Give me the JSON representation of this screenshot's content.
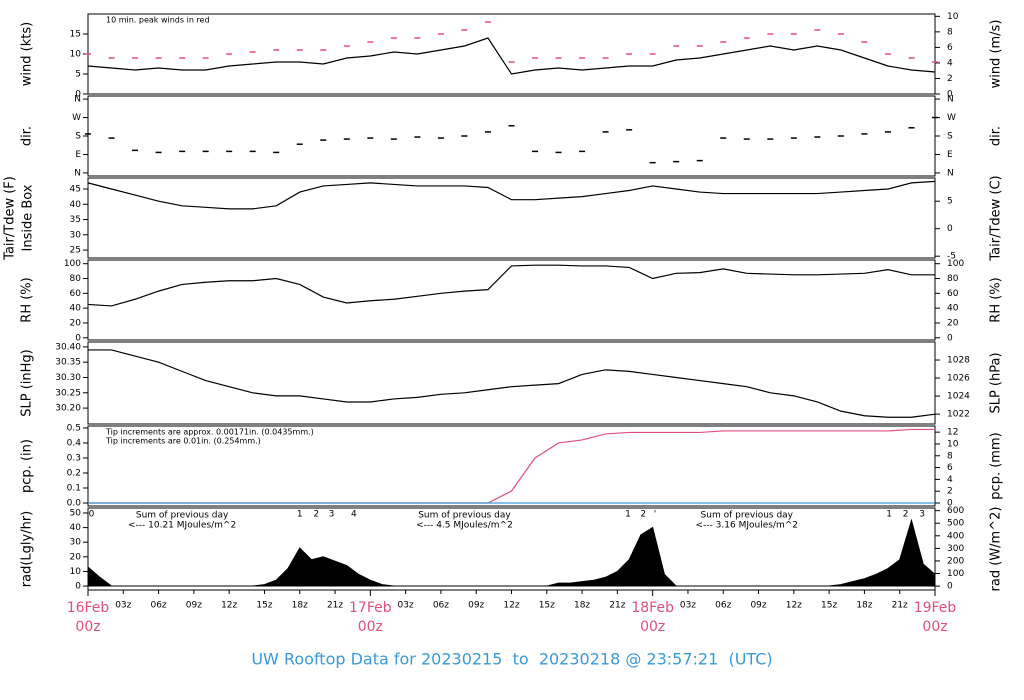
{
  "title": "UW Rooftop Data for 20230215  to  20230218 @ 23:57:21  (UTC)",
  "x_axis": {
    "xlim": [
      0,
      72
    ],
    "x": [
      0,
      2,
      4,
      6,
      8,
      10,
      12,
      14,
      16,
      18,
      20,
      22,
      24,
      26,
      28,
      30,
      32,
      34,
      36,
      38,
      40,
      42,
      44,
      46,
      48,
      50,
      52,
      54,
      56,
      58,
      60,
      62,
      64,
      66,
      68,
      70,
      72
    ],
    "ticks": [
      {
        "value": 3,
        "label": "03z"
      },
      {
        "value": 6,
        "label": "06z"
      },
      {
        "value": 9,
        "label": "09z"
      },
      {
        "value": 12,
        "label": "12z"
      },
      {
        "value": 15,
        "label": "15z"
      },
      {
        "value": 18,
        "label": "18z"
      },
      {
        "value": 21,
        "label": "21z"
      },
      {
        "value": 27,
        "label": "03z"
      },
      {
        "value": 30,
        "label": "06z"
      },
      {
        "value": 33,
        "label": "09z"
      },
      {
        "value": 36,
        "label": "12z"
      },
      {
        "value": 39,
        "label": "15z"
      },
      {
        "value": 42,
        "label": "18z"
      },
      {
        "value": 45,
        "label": "21z"
      },
      {
        "value": 51,
        "label": "03z"
      },
      {
        "value": 54,
        "label": "06z"
      },
      {
        "value": 57,
        "label": "09z"
      },
      {
        "value": 60,
        "label": "12z"
      },
      {
        "value": 63,
        "label": "15z"
      },
      {
        "value": 66,
        "label": "18z"
      },
      {
        "value": 69,
        "label": "21z"
      }
    ],
    "day_ticks": [
      {
        "value": 0,
        "label": "16Feb",
        "hour": "00z"
      },
      {
        "value": 24,
        "label": "17Feb",
        "hour": "00z"
      },
      {
        "value": 48,
        "label": "18Feb",
        "hour": "00z"
      },
      {
        "value": 72,
        "label": "19Feb",
        "hour": "00z"
      }
    ]
  },
  "chart_data": [
    {
      "type": "line",
      "ylabel": "wind (kts)",
      "y2label": "wind (m/s)",
      "ylim": [
        0,
        20
      ],
      "yticks": [
        0,
        5,
        10,
        15
      ],
      "y2lim": [
        0,
        10.3
      ],
      "y2ticks": [
        0,
        2,
        4,
        6,
        8,
        10
      ],
      "annotations": [
        {
          "text": "10 min. peak winds in red",
          "color": "#e0507a"
        }
      ],
      "series": [
        {
          "color": "#000000",
          "style": "line",
          "values": [
            7,
            6.5,
            6,
            6.5,
            6,
            6,
            7,
            7.5,
            8,
            8,
            7.5,
            9,
            9.5,
            10.5,
            10,
            11,
            12,
            14,
            5,
            6,
            6.5,
            6,
            6.5,
            7,
            7,
            8.5,
            9,
            10,
            11,
            12,
            11,
            12,
            11,
            9,
            7,
            6,
            5.5
          ]
        },
        {
          "color": "#e0507a",
          "style": "dash",
          "values": [
            10,
            9,
            9,
            9,
            9,
            9,
            10,
            10.5,
            11,
            11,
            11,
            12,
            13,
            14,
            14,
            15,
            16,
            18,
            8,
            9,
            9,
            9,
            9,
            10,
            10,
            12,
            12,
            13,
            14,
            15,
            15,
            16,
            15,
            13,
            10,
            9,
            8
          ]
        }
      ]
    },
    {
      "type": "scatter",
      "ylabel": "dir.",
      "y2label": "dir.",
      "ylim": [
        -15,
        375
      ],
      "yticks": [
        {
          "value": 0,
          "label": "N"
        },
        {
          "value": 90,
          "label": "E"
        },
        {
          "value": 180,
          "label": "S"
        },
        {
          "value": 270,
          "label": "W"
        },
        {
          "value": 360,
          "label": "N"
        }
      ],
      "y2lim": [
        -15,
        375
      ],
      "y2ticks": [
        {
          "value": 0,
          "label": "N"
        },
        {
          "value": 90,
          "label": "E"
        },
        {
          "value": 180,
          "label": "S"
        },
        {
          "value": 270,
          "label": "W"
        },
        {
          "value": 360,
          "label": "N"
        }
      ],
      "series": [
        {
          "color": "#000000",
          "style": "dash",
          "values": [
            190,
            170,
            110,
            100,
            105,
            105,
            105,
            105,
            100,
            140,
            160,
            165,
            170,
            165,
            175,
            170,
            180,
            200,
            230,
            105,
            100,
            105,
            200,
            210,
            50,
            55,
            60,
            170,
            165,
            165,
            170,
            175,
            180,
            190,
            200,
            220,
            270
          ]
        }
      ]
    },
    {
      "type": "line",
      "ylabel": "Tair/Tdew (F)",
      "ylabel_sub": "Inside Box",
      "y2label": "Tair/Tdew (C)",
      "ylim": [
        22.4,
        48.6
      ],
      "yticks": [
        25,
        30,
        35,
        40,
        45
      ],
      "y2lim": [
        -5.33,
        9.22
      ],
      "y2ticks": [
        -5,
        0,
        5
      ],
      "series": [
        {
          "color": "#000000",
          "style": "line",
          "values": [
            47,
            45,
            43,
            41,
            39.5,
            39,
            38.5,
            38.5,
            39.5,
            44,
            46,
            46.5,
            47,
            46.5,
            46,
            46,
            46,
            45.5,
            41.5,
            41.5,
            42,
            42.5,
            43.5,
            44.5,
            46,
            45,
            44,
            43.5,
            43.5,
            43.5,
            43.5,
            43.5,
            44,
            44.5,
            45,
            47,
            47.5
          ]
        }
      ]
    },
    {
      "type": "line",
      "ylabel": "RH (%)",
      "y2label": "RH (%)",
      "ylim": [
        -3,
        105
      ],
      "yticks": [
        0,
        20,
        40,
        60,
        80,
        100
      ],
      "y2lim": [
        -3,
        105
      ],
      "y2ticks": [
        0,
        20,
        40,
        60,
        80,
        100
      ],
      "series": [
        {
          "color": "#000000",
          "style": "line",
          "values": [
            45,
            43,
            52,
            63,
            72,
            75,
            77,
            77,
            80,
            72,
            55,
            47,
            50,
            52,
            56,
            60,
            63,
            65,
            97,
            98,
            98,
            97,
            97,
            95,
            80,
            87,
            88,
            93,
            87,
            86,
            85,
            85,
            86,
            87,
            92,
            85,
            85
          ]
        }
      ]
    },
    {
      "type": "line",
      "ylabel": "SLP (inHg)",
      "y2label": "SLP (hPa)",
      "ylim": [
        30.148,
        30.416
      ],
      "yticks": [
        {
          "value": 30.2,
          "label": "30.20"
        },
        {
          "value": 30.25,
          "label": "30.25"
        },
        {
          "value": 30.3,
          "label": "30.30"
        },
        {
          "value": 30.35,
          "label": "30.35"
        },
        {
          "value": 30.4,
          "label": "30.40"
        }
      ],
      "y2lim": [
        1020.9,
        1030.0
      ],
      "y2ticks": [
        1022,
        1024,
        1026,
        1028
      ],
      "series": [
        {
          "color": "#000000",
          "style": "line",
          "values": [
            30.39,
            30.39,
            30.37,
            30.35,
            30.32,
            30.29,
            30.27,
            30.25,
            30.24,
            30.24,
            30.23,
            30.22,
            30.22,
            30.23,
            30.235,
            30.245,
            30.25,
            30.26,
            30.27,
            30.275,
            30.28,
            30.31,
            30.325,
            30.32,
            30.31,
            30.3,
            30.29,
            30.28,
            30.27,
            30.25,
            30.24,
            30.22,
            30.19,
            30.175,
            30.17,
            30.17,
            30.18
          ]
        }
      ]
    },
    {
      "type": "line",
      "ylabel": "pcp. (in)",
      "y2label": "pcp. (mm)",
      "ylim": [
        -0.02,
        0.513
      ],
      "yticks": [
        {
          "value": 0,
          "label": "0.0"
        },
        0.1,
        0.2,
        0.3,
        0.4,
        0.5
      ],
      "y2lim": [
        -0.508,
        13.04
      ],
      "y2ticks": [
        0,
        2,
        4,
        6,
        8,
        10,
        12
      ],
      "annotations": [
        {
          "text": "Tip increments are approx. 0.00171in. (0.0435mm.)",
          "color": "#e0507a"
        },
        {
          "text": "Tip increments are 0.01in. (0.254mm.)",
          "color": "#3a9ad9"
        }
      ],
      "series": [
        {
          "color": "#e0507a",
          "style": "line",
          "values": [
            0,
            0,
            0,
            0,
            0,
            0,
            0,
            0,
            0,
            0,
            0,
            0,
            0,
            0,
            0,
            0,
            0,
            0,
            0.08,
            0.3,
            0.4,
            0.42,
            0.46,
            0.47,
            0.47,
            0.47,
            0.47,
            0.48,
            0.48,
            0.48,
            0.48,
            0.48,
            0.48,
            0.48,
            0.48,
            0.49,
            0.49
          ]
        },
        {
          "color": "#3a9ad9",
          "style": "line",
          "values": [
            0,
            0,
            0,
            0,
            0,
            0,
            0,
            0,
            0,
            0,
            0,
            0,
            0,
            0,
            0,
            0,
            0,
            0,
            0,
            0,
            0,
            0,
            0,
            0,
            0,
            0,
            0,
            0,
            0,
            0,
            0,
            0,
            0,
            0,
            0,
            0,
            0
          ]
        }
      ]
    },
    {
      "type": "area",
      "ylabel": "rad(Lgly/hr)",
      "y2label": "rad (W/m^2)",
      "ylim": [
        -2.7,
        53.4
      ],
      "yticks": [
        0,
        10,
        20,
        30,
        40,
        50
      ],
      "y2lim": [
        -31,
        621
      ],
      "y2ticks": [
        0,
        100,
        200,
        300,
        400,
        500,
        600
      ],
      "x": [
        0,
        1,
        2,
        3,
        4,
        5,
        6,
        7,
        8,
        9,
        10,
        11,
        12,
        13,
        14,
        15,
        16,
        17,
        18,
        19,
        20,
        21,
        22,
        23,
        24,
        25,
        26,
        27,
        28,
        29,
        30,
        31,
        32,
        33,
        34,
        35,
        36,
        37,
        38,
        39,
        40,
        41,
        42,
        43,
        44,
        45,
        46,
        47,
        48,
        49,
        50,
        51,
        52,
        53,
        54,
        55,
        56,
        57,
        58,
        59,
        60,
        61,
        62,
        63,
        64,
        65,
        66,
        67,
        68,
        69,
        70,
        71,
        72
      ],
      "markers": [
        {
          "x": 0.3,
          "label": "0"
        },
        {
          "x": 18,
          "label": "1"
        },
        {
          "x": 19.4,
          "label": "2"
        },
        {
          "x": 20.7,
          "label": "3"
        },
        {
          "x": 22.6,
          "label": "4"
        },
        {
          "x": 45.9,
          "label": "1"
        },
        {
          "x": 47.2,
          "label": "2"
        },
        {
          "x": 48.2,
          "label": "'"
        },
        {
          "x": 68.1,
          "label": "1"
        },
        {
          "x": 69.5,
          "label": "2"
        },
        {
          "x": 70.9,
          "label": "3"
        }
      ],
      "day_sums": [
        {
          "x": 8,
          "line1": "Sum of previous day",
          "line2": "<--- 10.21 MJoules/m^2"
        },
        {
          "x": 32,
          "line1": "Sum of previous day",
          "line2": "<--- 4.5 MJoules/m^2"
        },
        {
          "x": 56,
          "line1": "Sum of previous day",
          "line2": "<--- 3.16 MJoules/m^2"
        }
      ],
      "marker_color": "#9b30d0",
      "series": [
        {
          "color": "#000000",
          "values": [
            13,
            6,
            0,
            0,
            0,
            0,
            0,
            0,
            0,
            0,
            0,
            0,
            0,
            0,
            0,
            1,
            4,
            12,
            26,
            18,
            20,
            17,
            14,
            8,
            4,
            1,
            0,
            0,
            0,
            0,
            0,
            0,
            0,
            0,
            0,
            0,
            0,
            0,
            0,
            0,
            2,
            2,
            3,
            4,
            6,
            10,
            18,
            35,
            40,
            8,
            0,
            0,
            0,
            0,
            0,
            0,
            0,
            0,
            0,
            0,
            0,
            0,
            0,
            0,
            1,
            3,
            5,
            8,
            12,
            18,
            45,
            15,
            8
          ]
        }
      ]
    }
  ]
}
